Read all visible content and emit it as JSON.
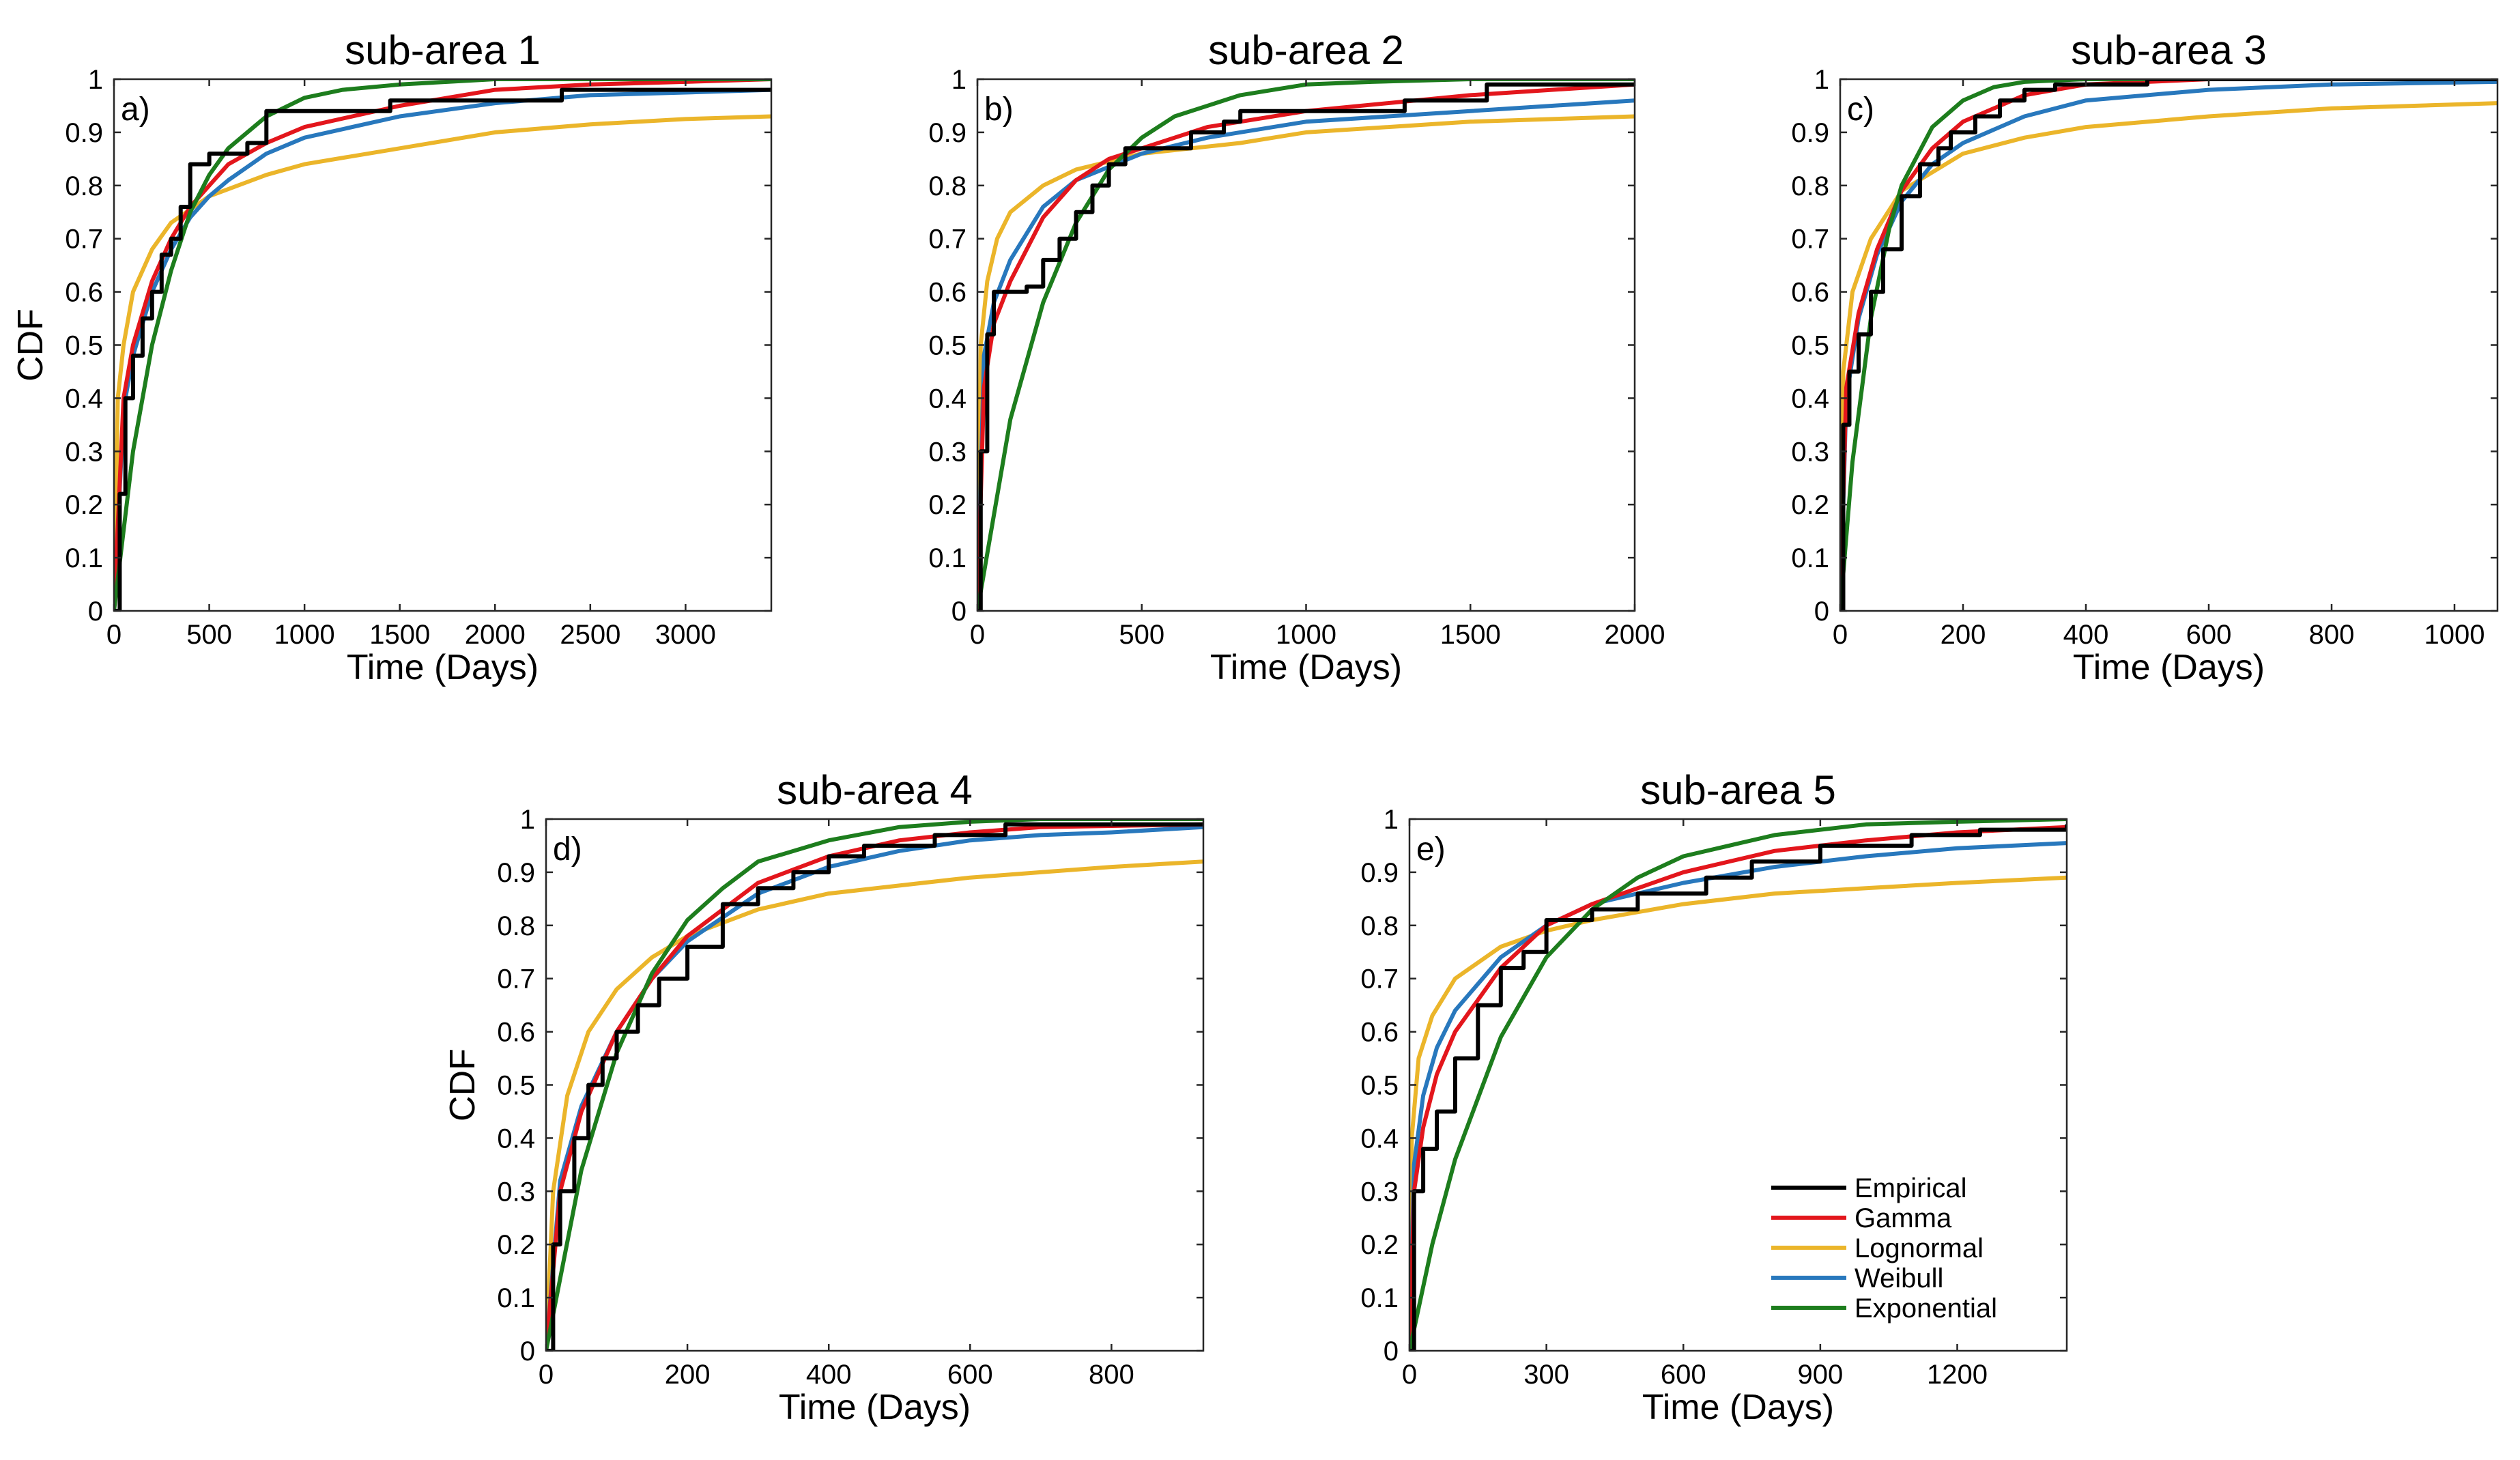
{
  "colors": {
    "Empirical": "#000000",
    "Gamma": "#e3161c",
    "Lognormal": "#ebb52a",
    "Weibull": "#2878bd",
    "Exponential": "#1d7d1d"
  },
  "legend": [
    "Empirical",
    "Gamma",
    "Lognormal",
    "Weibull",
    "Exponential"
  ],
  "chart_data": [
    {
      "type": "line",
      "title": "sub-area 1",
      "panel_label": "a)",
      "xlabel": "Time (Days)",
      "ylabel": "CDF",
      "xlim": [
        0,
        3450
      ],
      "ylim": [
        0,
        1
      ],
      "xticks": [
        0,
        500,
        1000,
        1500,
        2000,
        2500,
        3000
      ],
      "yticks": [
        0,
        0.1,
        0.2,
        0.3,
        0.4,
        0.5,
        0.6,
        0.7,
        0.8,
        0.9,
        1
      ],
      "series": [
        {
          "name": "Empirical",
          "step": true,
          "x": [
            0,
            30,
            60,
            100,
            150,
            200,
            250,
            300,
            350,
            400,
            500,
            600,
            700,
            800,
            900,
            1200,
            1450,
            1800,
            2350,
            3450
          ],
          "y": [
            0,
            0.22,
            0.4,
            0.48,
            0.55,
            0.6,
            0.67,
            0.7,
            0.76,
            0.84,
            0.86,
            0.86,
            0.88,
            0.94,
            0.94,
            0.94,
            0.96,
            0.96,
            0.98,
            0.98
          ]
        },
        {
          "name": "Gamma",
          "x": [
            0,
            50,
            100,
            200,
            300,
            400,
            500,
            600,
            800,
            1000,
            1500,
            2000,
            2500,
            3000,
            3450
          ],
          "y": [
            0,
            0.4,
            0.5,
            0.62,
            0.7,
            0.76,
            0.8,
            0.84,
            0.88,
            0.91,
            0.95,
            0.98,
            0.99,
            0.995,
            1.0
          ]
        },
        {
          "name": "Lognormal",
          "x": [
            0,
            20,
            50,
            100,
            200,
            300,
            500,
            800,
            1000,
            1500,
            2000,
            2500,
            3000,
            3450
          ],
          "y": [
            0,
            0.4,
            0.5,
            0.6,
            0.68,
            0.73,
            0.78,
            0.82,
            0.84,
            0.87,
            0.9,
            0.915,
            0.925,
            0.93
          ]
        },
        {
          "name": "Weibull",
          "x": [
            0,
            50,
            100,
            200,
            300,
            400,
            500,
            600,
            800,
            1000,
            1500,
            2000,
            2500,
            3000,
            3450
          ],
          "y": [
            0,
            0.38,
            0.48,
            0.6,
            0.68,
            0.74,
            0.78,
            0.81,
            0.86,
            0.89,
            0.93,
            0.955,
            0.97,
            0.975,
            0.98
          ]
        },
        {
          "name": "Exponential",
          "x": [
            0,
            100,
            200,
            300,
            400,
            500,
            600,
            800,
            1000,
            1200,
            1500,
            2000,
            3450
          ],
          "y": [
            0,
            0.3,
            0.5,
            0.64,
            0.75,
            0.82,
            0.87,
            0.93,
            0.965,
            0.98,
            0.99,
            1.0,
            1.0
          ]
        }
      ]
    },
    {
      "type": "line",
      "title": "sub-area 2",
      "panel_label": "b)",
      "xlabel": "Time (Days)",
      "ylabel": "",
      "xlim": [
        0,
        2000
      ],
      "ylim": [
        0,
        1
      ],
      "xticks": [
        0,
        500,
        1000,
        1500,
        2000
      ],
      "yticks": [
        0,
        0.1,
        0.2,
        0.3,
        0.4,
        0.5,
        0.6,
        0.7,
        0.8,
        0.9,
        1
      ],
      "series": [
        {
          "name": "Empirical",
          "step": true,
          "x": [
            0,
            10,
            30,
            50,
            150,
            200,
            250,
            300,
            350,
            400,
            450,
            600,
            650,
            750,
            800,
            1000,
            1300,
            1550,
            2000
          ],
          "y": [
            0,
            0.3,
            0.52,
            0.6,
            0.61,
            0.66,
            0.7,
            0.75,
            0.8,
            0.84,
            0.87,
            0.87,
            0.9,
            0.92,
            0.94,
            0.94,
            0.96,
            0.99,
            0.99
          ]
        },
        {
          "name": "Gamma",
          "x": [
            0,
            20,
            50,
            100,
            200,
            300,
            400,
            500,
            700,
            1000,
            1500,
            2000
          ],
          "y": [
            0,
            0.42,
            0.54,
            0.62,
            0.74,
            0.81,
            0.85,
            0.87,
            0.91,
            0.94,
            0.97,
            0.99
          ]
        },
        {
          "name": "Lognormal",
          "x": [
            0,
            10,
            30,
            60,
            100,
            200,
            300,
            500,
            800,
            1000,
            1500,
            2000
          ],
          "y": [
            0,
            0.5,
            0.62,
            0.7,
            0.75,
            0.8,
            0.83,
            0.86,
            0.88,
            0.9,
            0.92,
            0.93
          ]
        },
        {
          "name": "Weibull",
          "x": [
            0,
            20,
            50,
            100,
            200,
            300,
            500,
            700,
            1000,
            1500,
            2000
          ],
          "y": [
            0,
            0.48,
            0.58,
            0.66,
            0.76,
            0.81,
            0.86,
            0.89,
            0.92,
            0.94,
            0.96
          ]
        },
        {
          "name": "Exponential",
          "x": [
            0,
            100,
            200,
            300,
            400,
            500,
            600,
            800,
            1000,
            1200,
            1500,
            2000
          ],
          "y": [
            0,
            0.36,
            0.58,
            0.73,
            0.83,
            0.89,
            0.93,
            0.97,
            0.99,
            0.995,
            1.0,
            1.0
          ]
        }
      ]
    },
    {
      "type": "line",
      "title": "sub-area 3",
      "panel_label": "c)",
      "xlabel": "Time (Days)",
      "ylabel": "",
      "xlim": [
        0,
        1070
      ],
      "ylim": [
        0,
        1
      ],
      "xticks": [
        0,
        200,
        400,
        600,
        800,
        1000
      ],
      "yticks": [
        0,
        0.1,
        0.2,
        0.3,
        0.4,
        0.5,
        0.6,
        0.7,
        0.8,
        0.9,
        1
      ],
      "series": [
        {
          "name": "Empirical",
          "step": true,
          "x": [
            0,
            5,
            15,
            30,
            50,
            70,
            100,
            130,
            160,
            180,
            220,
            260,
            300,
            350,
            400,
            500,
            1070
          ],
          "y": [
            0,
            0.35,
            0.45,
            0.52,
            0.6,
            0.68,
            0.78,
            0.84,
            0.87,
            0.9,
            0.93,
            0.96,
            0.98,
            0.99,
            0.99,
            1.0,
            1.0
          ]
        },
        {
          "name": "Gamma",
          "x": [
            0,
            10,
            30,
            60,
            100,
            150,
            200,
            300,
            400,
            600,
            1070
          ],
          "y": [
            0,
            0.42,
            0.56,
            0.68,
            0.79,
            0.87,
            0.92,
            0.97,
            0.99,
            1.0,
            1.0
          ]
        },
        {
          "name": "Lognormal",
          "x": [
            0,
            5,
            20,
            50,
            100,
            200,
            300,
            400,
            600,
            800,
            1070
          ],
          "y": [
            0,
            0.45,
            0.6,
            0.7,
            0.79,
            0.86,
            0.89,
            0.91,
            0.93,
            0.945,
            0.955
          ]
        },
        {
          "name": "Weibull",
          "x": [
            0,
            10,
            30,
            60,
            100,
            150,
            200,
            300,
            400,
            600,
            800,
            1070
          ],
          "y": [
            0,
            0.4,
            0.55,
            0.67,
            0.77,
            0.84,
            0.88,
            0.93,
            0.96,
            0.98,
            0.99,
            0.995
          ]
        },
        {
          "name": "Exponential",
          "x": [
            0,
            20,
            50,
            80,
            100,
            150,
            200,
            250,
            300,
            400,
            1070
          ],
          "y": [
            0,
            0.28,
            0.55,
            0.72,
            0.8,
            0.91,
            0.96,
            0.985,
            0.995,
            1.0,
            1.0
          ]
        }
      ]
    },
    {
      "type": "line",
      "title": "sub-area 4",
      "panel_label": "d)",
      "xlabel": "Time (Days)",
      "ylabel": "CDF",
      "xlim": [
        0,
        930
      ],
      "ylim": [
        0,
        1
      ],
      "xticks": [
        0,
        200,
        400,
        600,
        800
      ],
      "yticks": [
        0,
        0.1,
        0.2,
        0.3,
        0.4,
        0.5,
        0.6,
        0.7,
        0.8,
        0.9,
        1
      ],
      "series": [
        {
          "name": "Empirical",
          "step": true,
          "x": [
            0,
            10,
            20,
            40,
            60,
            80,
            100,
            130,
            160,
            200,
            250,
            300,
            350,
            400,
            450,
            550,
            650,
            930
          ],
          "y": [
            0,
            0.2,
            0.3,
            0.4,
            0.5,
            0.55,
            0.6,
            0.65,
            0.7,
            0.76,
            0.84,
            0.87,
            0.9,
            0.93,
            0.95,
            0.97,
            0.99,
            0.99
          ]
        },
        {
          "name": "Gamma",
          "x": [
            0,
            20,
            50,
            100,
            150,
            200,
            300,
            400,
            500,
            600,
            700,
            930
          ],
          "y": [
            0,
            0.3,
            0.45,
            0.6,
            0.7,
            0.78,
            0.88,
            0.93,
            0.96,
            0.975,
            0.985,
            0.99
          ]
        },
        {
          "name": "Lognormal",
          "x": [
            0,
            10,
            30,
            60,
            100,
            150,
            200,
            300,
            400,
            500,
            600,
            700,
            800,
            930
          ],
          "y": [
            0,
            0.3,
            0.48,
            0.6,
            0.68,
            0.74,
            0.78,
            0.83,
            0.86,
            0.875,
            0.89,
            0.9,
            0.91,
            0.92
          ]
        },
        {
          "name": "Weibull",
          "x": [
            0,
            20,
            50,
            100,
            150,
            200,
            300,
            400,
            500,
            600,
            700,
            800,
            930
          ],
          "y": [
            0,
            0.32,
            0.46,
            0.6,
            0.7,
            0.77,
            0.86,
            0.91,
            0.94,
            0.96,
            0.97,
            0.975,
            0.985
          ]
        },
        {
          "name": "Exponential",
          "x": [
            0,
            50,
            100,
            150,
            200,
            250,
            300,
            400,
            500,
            600,
            700,
            930
          ],
          "y": [
            0,
            0.34,
            0.56,
            0.71,
            0.81,
            0.87,
            0.92,
            0.96,
            0.985,
            0.995,
            1.0,
            1.0
          ]
        }
      ]
    },
    {
      "type": "line",
      "title": "sub-area 5",
      "panel_label": "e)",
      "xlabel": "Time (Days)",
      "ylabel": "",
      "xlim": [
        0,
        1440
      ],
      "ylim": [
        0,
        1
      ],
      "xticks": [
        0,
        300,
        600,
        900,
        1200
      ],
      "yticks": [
        0,
        0.1,
        0.2,
        0.3,
        0.4,
        0.5,
        0.6,
        0.7,
        0.8,
        0.9,
        1
      ],
      "series": [
        {
          "name": "Empirical",
          "step": true,
          "x": [
            0,
            10,
            30,
            60,
            100,
            150,
            200,
            250,
            300,
            400,
            500,
            650,
            750,
            900,
            1100,
            1250,
            1440
          ],
          "y": [
            0,
            0.3,
            0.38,
            0.45,
            0.55,
            0.65,
            0.72,
            0.75,
            0.81,
            0.83,
            0.86,
            0.89,
            0.92,
            0.95,
            0.97,
            0.98,
            0.99
          ]
        },
        {
          "name": "Gamma",
          "x": [
            0,
            10,
            30,
            60,
            100,
            200,
            300,
            400,
            600,
            800,
            1000,
            1200,
            1440
          ],
          "y": [
            0,
            0.3,
            0.42,
            0.52,
            0.6,
            0.72,
            0.8,
            0.84,
            0.9,
            0.94,
            0.96,
            0.975,
            0.985
          ]
        },
        {
          "name": "Lognormal",
          "x": [
            0,
            5,
            20,
            50,
            100,
            200,
            300,
            400,
            600,
            800,
            1000,
            1200,
            1440
          ],
          "y": [
            0,
            0.4,
            0.55,
            0.63,
            0.7,
            0.76,
            0.79,
            0.81,
            0.84,
            0.86,
            0.87,
            0.88,
            0.89
          ]
        },
        {
          "name": "Weibull",
          "x": [
            0,
            10,
            30,
            60,
            100,
            200,
            300,
            400,
            600,
            800,
            1000,
            1200,
            1440
          ],
          "y": [
            0,
            0.35,
            0.48,
            0.57,
            0.64,
            0.74,
            0.8,
            0.84,
            0.88,
            0.91,
            0.93,
            0.945,
            0.955
          ]
        },
        {
          "name": "Exponential",
          "x": [
            0,
            50,
            100,
            200,
            300,
            400,
            500,
            600,
            800,
            1000,
            1200,
            1440
          ],
          "y": [
            0,
            0.2,
            0.36,
            0.59,
            0.74,
            0.83,
            0.89,
            0.93,
            0.97,
            0.99,
            0.995,
            1.0
          ]
        }
      ]
    }
  ]
}
